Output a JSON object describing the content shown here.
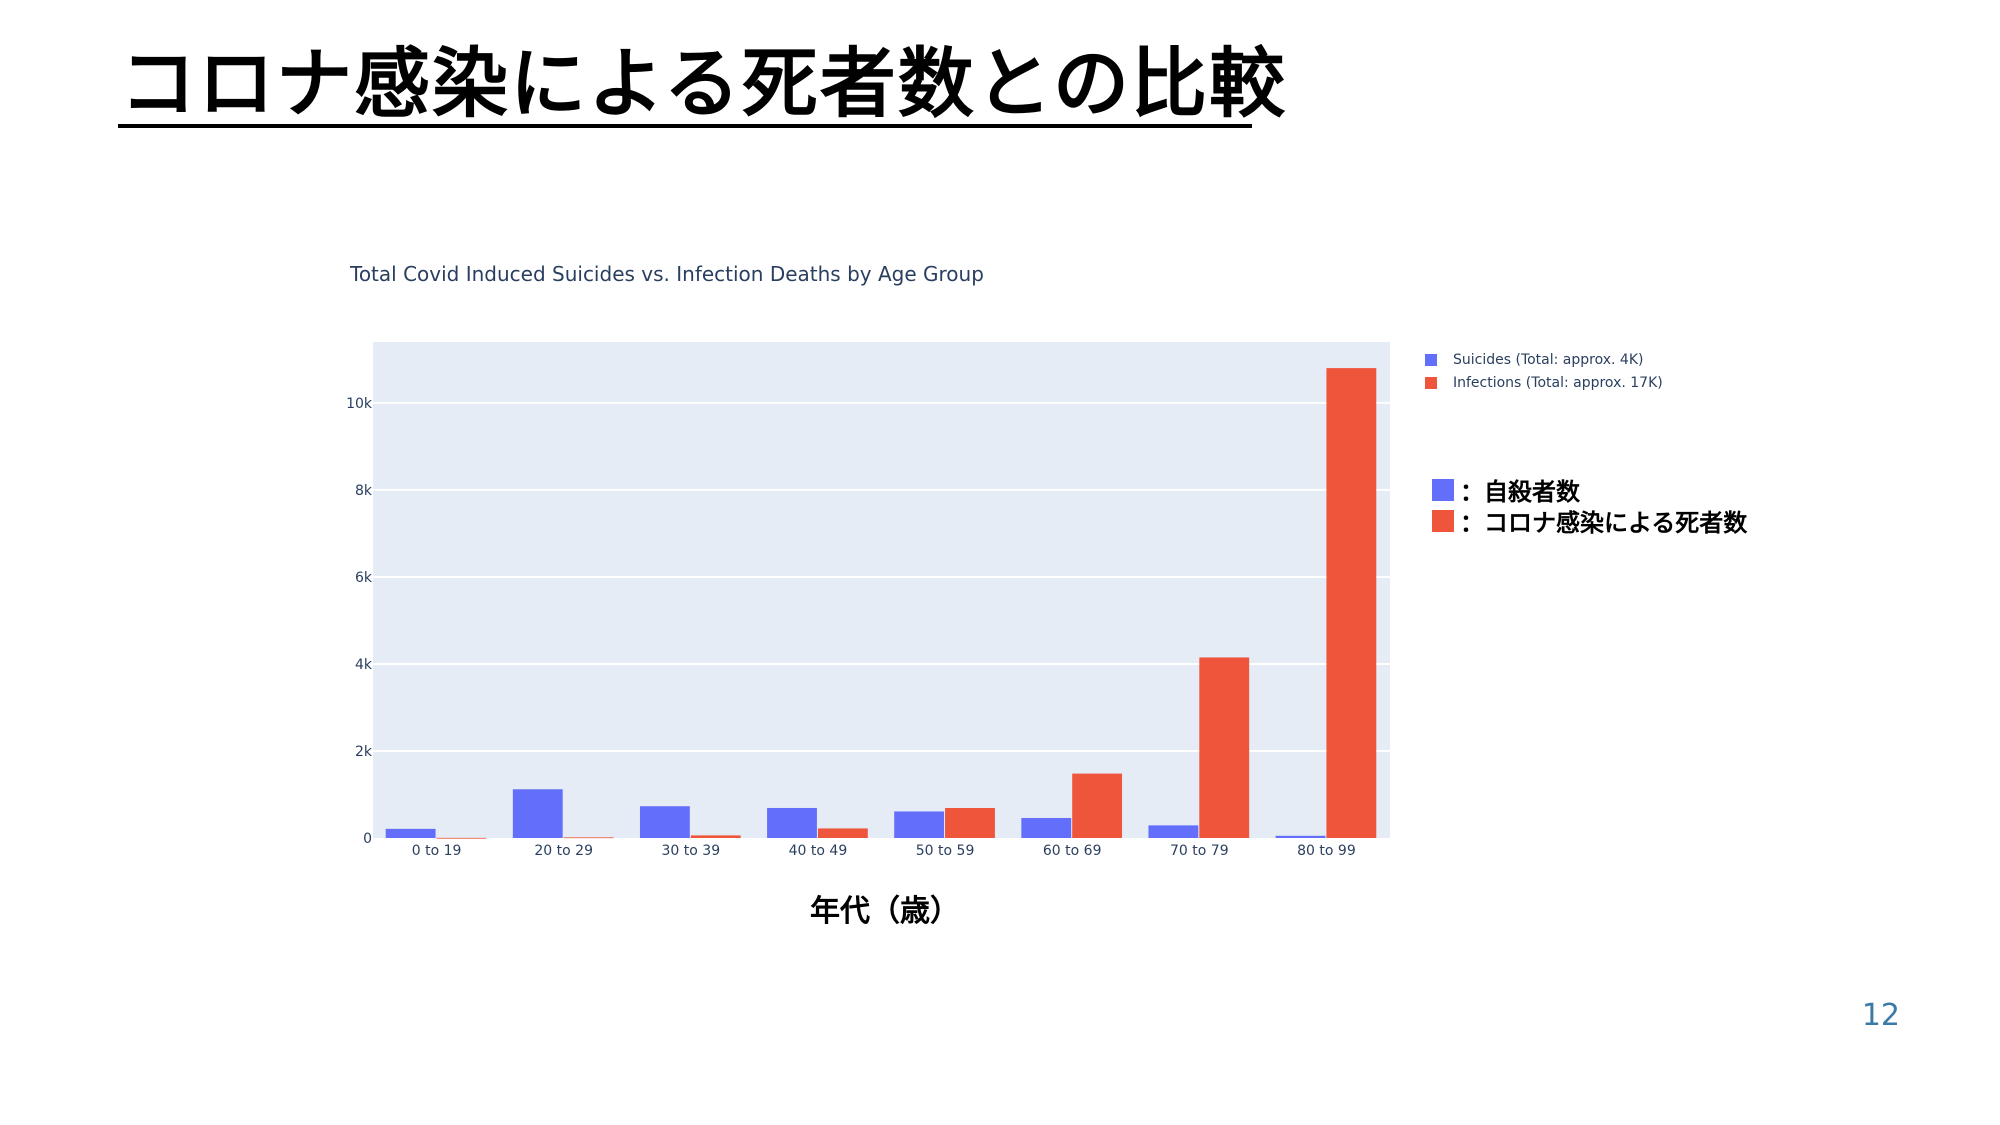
{
  "slide": {
    "title": "コロナ感染による死者数との比較",
    "page_number": "12"
  },
  "annotation": {
    "items": [
      {
        "label": "：自殺者数",
        "color": "#636efa"
      },
      {
        "label": "：コロナ感染による死者数",
        "color": "#ef553b"
      }
    ]
  },
  "chart_data": {
    "type": "bar",
    "title": "Total Covid Induced Suicides vs. Infection Deaths by Age Group",
    "xlabel": "年代（歳）",
    "ylabel": "",
    "categories": [
      "0 to 19",
      "20 to 29",
      "30 to 39",
      "40 to 49",
      "50 to 59",
      "60 to 69",
      "70 to 79",
      "80 to 99"
    ],
    "series": [
      {
        "name": "Suicides (Total: approx. 4K)",
        "color": "#636efa",
        "values": [
          210,
          1120,
          730,
          690,
          610,
          460,
          290,
          50
        ]
      },
      {
        "name": "Infections (Total: approx. 17K)",
        "color": "#ef553b",
        "values": [
          3,
          15,
          60,
          220,
          690,
          1480,
          4150,
          10800
        ]
      }
    ],
    "ylim": [
      0,
      11400
    ],
    "yticks": [
      0,
      2000,
      4000,
      6000,
      8000,
      10000
    ],
    "ytick_labels": [
      "0",
      "2k",
      "4k",
      "6k",
      "8k",
      "10k"
    ],
    "grid": true,
    "legend_position": "top-right, outside plot",
    "plot_background": "#e5ecf6"
  }
}
